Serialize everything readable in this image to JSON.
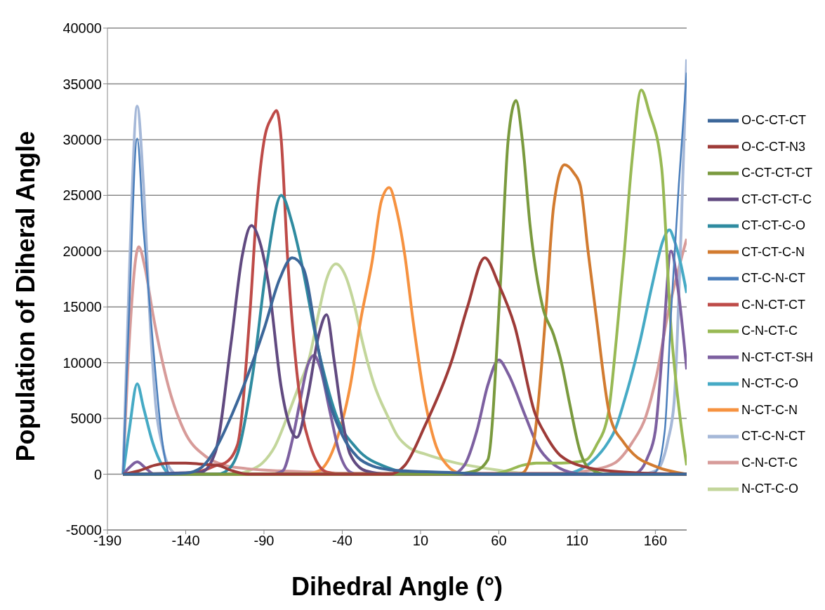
{
  "chart_data": {
    "type": "line",
    "xlabel": "Dihedral Angle (°)",
    "ylabel": "Population of Diheral Angle",
    "xlim": [
      -190,
      180
    ],
    "xticks": [
      -190,
      -140,
      -90,
      -40,
      10,
      60,
      110,
      160
    ],
    "ylim": [
      -5000,
      40000
    ],
    "yticks": [
      -5000,
      0,
      5000,
      10000,
      15000,
      20000,
      25000,
      30000,
      35000,
      40000
    ],
    "grid": "y",
    "legend": "right",
    "marker": "none",
    "line_style": "solid",
    "series": [
      {
        "name": "O-C-CT-CT",
        "color": "#3c679a",
        "x": [
          -180,
          -160,
          -140,
          -130,
          -120,
          -110,
          -100,
          -90,
          -80,
          -72,
          -65,
          -55,
          -50,
          -40,
          -30,
          -20,
          -10,
          0,
          30,
          60,
          180
        ],
        "values": [
          0,
          0,
          100,
          600,
          2500,
          5500,
          9000,
          13000,
          17500,
          19400,
          18500,
          11000,
          7500,
          3500,
          1500,
          700,
          400,
          300,
          150,
          0,
          0
        ]
      },
      {
        "name": "O-C-CT-N3",
        "color": "#9e3b38",
        "x": [
          -180,
          -170,
          -160,
          -150,
          -140,
          -130,
          -120,
          -110,
          -100,
          -10,
          0,
          13,
          30,
          40,
          51,
          60,
          70,
          83,
          90,
          100,
          120,
          140,
          180
        ],
        "values": [
          0,
          300,
          800,
          1000,
          1000,
          900,
          800,
          300,
          0,
          0,
          800,
          4400,
          10200,
          15000,
          19400,
          17000,
          13350,
          5500,
          3500,
          1600,
          500,
          200,
          0
        ]
      },
      {
        "name": "C-CT-CT-CT",
        "color": "#7a9a3e",
        "x": [
          -180,
          30,
          45,
          53,
          61,
          66,
          71,
          75,
          80,
          88,
          95,
          100,
          105,
          112,
          118,
          130,
          180
        ],
        "values": [
          0,
          0,
          300,
          1300,
          17000,
          30000,
          33500,
          30000,
          22250,
          15000,
          12500,
          10000,
          6500,
          2000,
          500,
          0,
          0
        ]
      },
      {
        "name": "CT-CT-CT-C",
        "color": "#614a80",
        "x": [
          -180,
          -130,
          -121,
          -111,
          -104,
          -98,
          -92,
          -87,
          -79,
          -74,
          -69,
          -62,
          -55,
          -50,
          -45,
          -40,
          -35,
          -25,
          -10,
          180
        ],
        "values": [
          0,
          200,
          2000,
          11800,
          19500,
          22300,
          20500,
          17000,
          7800,
          4500,
          3300,
          7000,
          12500,
          14300,
          10000,
          5000,
          1800,
          300,
          0,
          0
        ]
      },
      {
        "name": "CT-CT-C-O",
        "color": "#2f8ba0",
        "x": [
          -180,
          -120,
          -115,
          -107,
          -97,
          -88,
          -79,
          -72,
          -67,
          -55,
          -43,
          -31,
          -11,
          0,
          30,
          180
        ],
        "values": [
          0,
          0,
          200,
          1800,
          9150,
          19000,
          25000,
          22500,
          19600,
          11000,
          4950,
          2350,
          600,
          200,
          0,
          0
        ]
      },
      {
        "name": "CT-CT-C-N",
        "color": "#d27b30",
        "x": [
          -180,
          70,
          75,
          82,
          90,
          95,
          102,
          108,
          112,
          117,
          122,
          131,
          140,
          146,
          160,
          180
        ],
        "values": [
          0,
          0,
          100,
          2600,
          14400,
          24000,
          27750,
          27000,
          25900,
          20000,
          14400,
          5200,
          2800,
          1800,
          700,
          0
        ]
      },
      {
        "name": "CT-C-N-CT",
        "color": "#4a7ebb",
        "x": [
          -180,
          -176,
          -171,
          -167,
          -161,
          -155,
          -150,
          155,
          160,
          166,
          170,
          175,
          180
        ],
        "values": [
          0,
          15000,
          30100,
          22000,
          11800,
          3000,
          0,
          0,
          200,
          3900,
          14400,
          26000,
          36000
        ]
      },
      {
        "name": "C-N-CT-CT",
        "color": "#be4b48",
        "x": [
          -180,
          -150,
          -130,
          -120,
          -115,
          -107,
          -99,
          -94,
          -90,
          -85,
          -82,
          -79,
          -75,
          -69,
          -65,
          -61,
          -55,
          -50,
          -40,
          180
        ],
        "values": [
          0,
          0,
          300,
          800,
          1000,
          2600,
          14400,
          25000,
          29850,
          32000,
          32600,
          30000,
          19600,
          9150,
          5000,
          2800,
          800,
          200,
          0,
          0
        ]
      },
      {
        "name": "C-N-CT-C",
        "color": "#98b954",
        "x": [
          -180,
          55,
          65,
          75,
          85,
          100,
          110,
          116,
          122,
          130,
          135,
          140,
          145,
          151,
          156,
          164,
          170,
          175,
          180
        ],
        "values": [
          0,
          0,
          300,
          800,
          1000,
          1000,
          1100,
          1300,
          2500,
          5500,
          12000,
          19600,
          28000,
          34450,
          32500,
          27500,
          13100,
          6000,
          800
        ]
      },
      {
        "name": "N-CT-CT-SH",
        "color": "#7d60a0",
        "x": [
          -180,
          -176,
          -171,
          -166,
          -160,
          -85,
          -78,
          -72,
          -67,
          -62,
          -58,
          -54,
          -48,
          -42,
          -35,
          -30,
          30,
          38,
          46,
          53,
          60,
          66,
          77,
          85,
          94,
          105,
          115,
          145,
          150,
          155,
          160,
          165,
          170,
          175,
          180
        ],
        "values": [
          0,
          600,
          1100,
          600,
          0,
          0,
          300,
          3000,
          6500,
          9800,
          10650,
          9500,
          5700,
          2000,
          200,
          0,
          0,
          800,
          3900,
          8000,
          10250,
          9000,
          5200,
          2500,
          1000,
          200,
          0,
          0,
          300,
          1500,
          3900,
          12000,
          20000,
          16000,
          9400
        ]
      },
      {
        "name": "N-CT-C-O",
        "color": "#46aac5",
        "x": [
          -180,
          -176,
          -171,
          -167,
          -161,
          -155,
          -150,
          100,
          110,
          120,
          130,
          134,
          140,
          150,
          158,
          165,
          169,
          172,
          176,
          180
        ],
        "values": [
          0,
          4000,
          8100,
          6000,
          2800,
          800,
          0,
          0,
          300,
          1200,
          2900,
          3900,
          6500,
          11800,
          17000,
          21000,
          21900,
          21000,
          19000,
          16250
        ]
      },
      {
        "name": "N-CT-C-N",
        "color": "#f69240",
        "x": [
          -180,
          -65,
          -55,
          -51,
          -45,
          -35,
          -28,
          -21,
          -15,
          -10,
          -5,
          0,
          5,
          13,
          20,
          27,
          35,
          45,
          180
        ],
        "values": [
          0,
          0,
          300,
          800,
          2500,
          7850,
          14000,
          19000,
          24500,
          25700,
          23500,
          19600,
          14000,
          6500,
          2500,
          800,
          100,
          0,
          0
        ]
      },
      {
        "name": "CT-C-N-CT",
        "color": "#a5b8d8",
        "x": [
          -180,
          -176,
          -171,
          -167,
          -163,
          -159,
          -155,
          -150,
          -145,
          150,
          160,
          164,
          168,
          172,
          176,
          180
        ],
        "values": [
          0,
          18000,
          33000,
          26000,
          14400,
          6000,
          2600,
          500,
          0,
          0,
          300,
          1000,
          3000,
          6500,
          20000,
          37200
        ]
      },
      {
        "name": "C-N-CT-C",
        "color": "#d79b99",
        "x": [
          -180,
          -176,
          -170,
          -166,
          -161,
          -151,
          -141,
          -127,
          -115,
          -101,
          -80,
          -60,
          -40,
          100,
          120,
          134,
          145,
          154,
          161,
          168,
          175,
          180
        ],
        "values": [
          0,
          12000,
          20400,
          18500,
          14400,
          7850,
          3900,
          1570,
          800,
          500,
          300,
          200,
          100,
          100,
          400,
          1000,
          2800,
          5200,
          9000,
          14400,
          18500,
          21100
        ]
      },
      {
        "name": "N-CT-C-O",
        "color": "#c3d69b",
        "x": [
          -180,
          -110,
          -100,
          -91,
          -83,
          -75,
          -68,
          -61,
          -55,
          -50,
          -44,
          -38,
          -32,
          -27,
          -20,
          -11,
          -5,
          3,
          13,
          33,
          53,
          76,
          120,
          180
        ],
        "values": [
          0,
          0,
          300,
          1000,
          2500,
          5200,
          7800,
          10450,
          14500,
          17500,
          18850,
          17800,
          15000,
          11800,
          8200,
          5200,
          3500,
          2350,
          1800,
          1000,
          500,
          100,
          0,
          0
        ]
      }
    ]
  }
}
